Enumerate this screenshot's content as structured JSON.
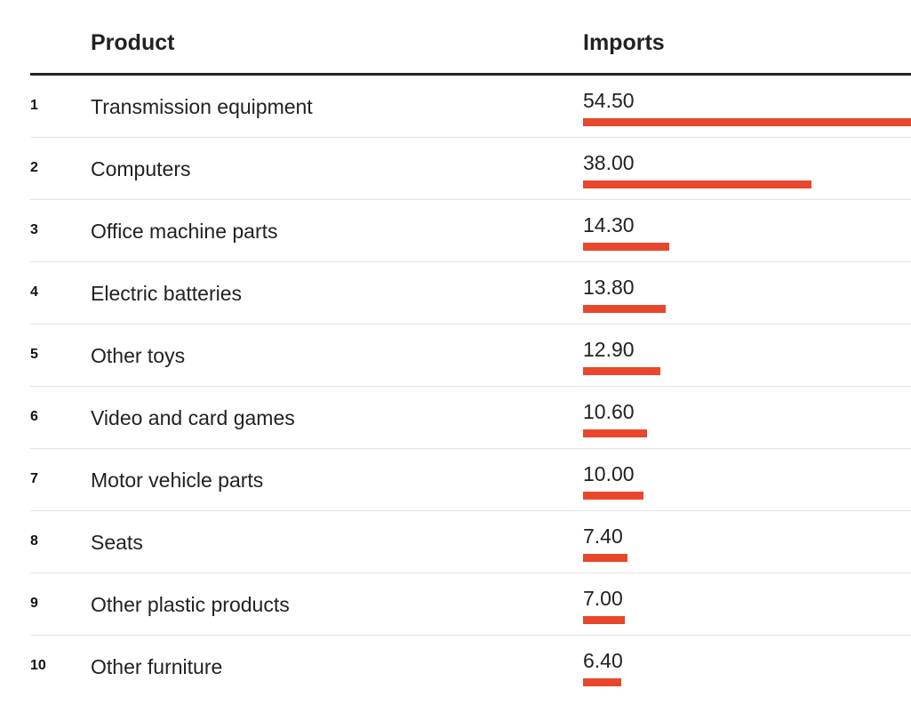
{
  "headers": {
    "product": "Product",
    "imports": "Imports"
  },
  "chart_data": {
    "type": "bar",
    "orientation": "horizontal",
    "ranks": [
      "1",
      "2",
      "3",
      "4",
      "5",
      "6",
      "7",
      "8",
      "9",
      "10"
    ],
    "categories": [
      "Transmission equipment",
      "Computers",
      "Office machine parts",
      "Electric batteries",
      "Other toys",
      "Video and card games",
      "Motor vehicle parts",
      "Seats",
      "Other plastic products",
      "Other furniture"
    ],
    "values": [
      54.5,
      38.0,
      14.3,
      13.8,
      12.9,
      10.6,
      10.0,
      7.4,
      7.0,
      6.4
    ],
    "value_labels": [
      "54.50",
      "38.00",
      "14.30",
      "13.80",
      "12.90",
      "10.60",
      "10.00",
      "7.40",
      "7.00",
      "6.40"
    ],
    "xlim": [
      0,
      54.5
    ],
    "grid": false,
    "bar_color": "#e8472c"
  }
}
